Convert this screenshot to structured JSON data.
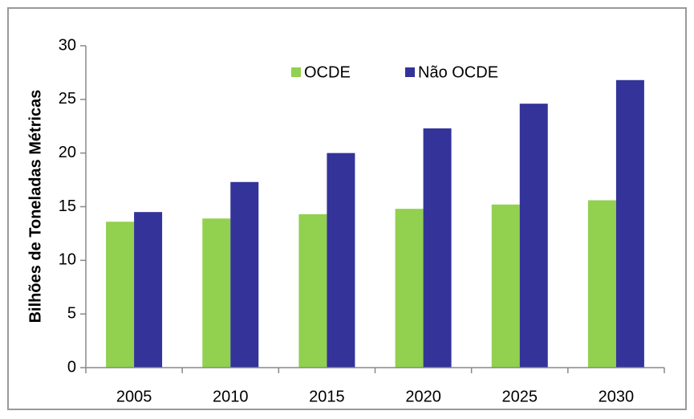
{
  "chart_data": {
    "type": "bar",
    "y_label": "Bilhões de Toneladas Métricas",
    "categories": [
      "2005",
      "2010",
      "2015",
      "2020",
      "2025",
      "2030"
    ],
    "series": [
      {
        "name": "OCDE",
        "color": "#92d050",
        "values": [
          13.6,
          13.9,
          14.3,
          14.8,
          15.2,
          15.6
        ]
      },
      {
        "name": "Não OCDE",
        "color": "#333399",
        "values": [
          14.5,
          17.3,
          20.0,
          22.3,
          24.6,
          26.8
        ]
      }
    ],
    "ylim": [
      0,
      30
    ],
    "yticks": [
      0,
      5,
      10,
      15,
      20,
      25,
      30
    ],
    "grid": false,
    "legend": "top"
  }
}
